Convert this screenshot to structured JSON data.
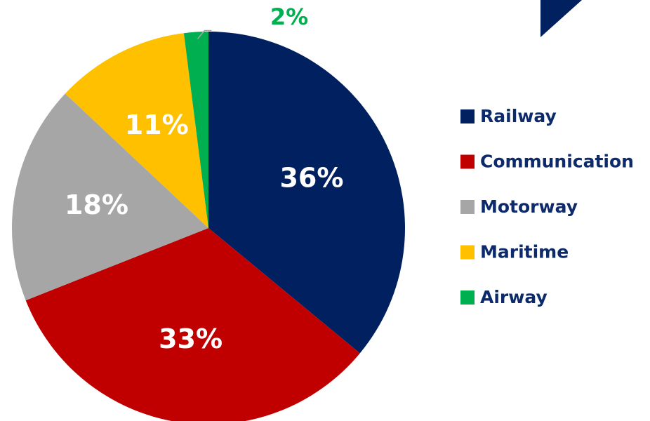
{
  "chart_data": {
    "type": "pie",
    "categories": [
      "Railway",
      "Communication",
      "Motorway",
      "Maritime",
      "Airway"
    ],
    "values": [
      36,
      33,
      18,
      11,
      2
    ],
    "value_labels": [
      "36%",
      "33%",
      "18%",
      "11%",
      "2%"
    ],
    "colors": [
      "#002060",
      "#c00000",
      "#a6a6a6",
      "#ffc000",
      "#00b050"
    ],
    "legend": "right"
  }
}
